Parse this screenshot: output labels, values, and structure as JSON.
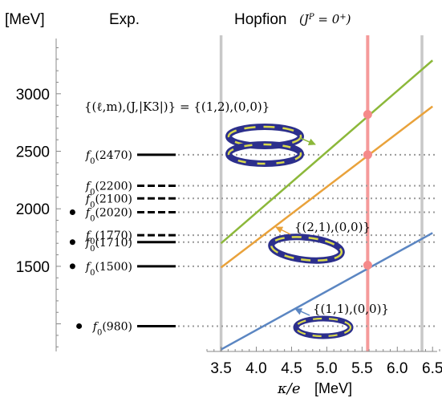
{
  "chart_data": {
    "type": "line",
    "y_unit_label": "[MeV]",
    "exp_title": "Exp.",
    "theory_title": "Hopfion",
    "theory_jp": "(J^P = 0^+)",
    "xlabel_var": "κ/e",
    "xlabel_unit": "[MeV]",
    "ylim": [
      760,
      3480
    ],
    "xlim": [
      3.3,
      6.6
    ],
    "yticks": [
      1500,
      2000,
      2500,
      3000
    ],
    "xticks": [
      3.5,
      4.0,
      4.5,
      5.0,
      5.5,
      6.0,
      6.5
    ],
    "xtick_labels": [
      "3.5",
      "4.0",
      "4.5",
      "5.0",
      "5.5",
      "6.0",
      "6.5"
    ],
    "experimental_states": [
      {
        "label": "f0(980)",
        "mass": 980,
        "established": true,
        "line": "solid"
      },
      {
        "label": "f0(1500)",
        "mass": 1500,
        "established": true,
        "line": "solid"
      },
      {
        "label": "f0(1710)",
        "mass": 1710,
        "established": true,
        "line": "solid"
      },
      {
        "label": "f0(1770)",
        "mass": 1770,
        "established": false,
        "line": "dashed"
      },
      {
        "label": "f0(2020)",
        "mass": 1970,
        "established": true,
        "line": "dashed"
      },
      {
        "label": "f0(2100)",
        "mass": 2090,
        "established": false,
        "line": "dashed"
      },
      {
        "label": "f0(2200)",
        "mass": 2200,
        "established": false,
        "line": "dashed"
      },
      {
        "label": "f0(2470)",
        "mass": 2470,
        "established": false,
        "line": "solid"
      }
    ],
    "series": [
      {
        "label": "{(1,1),(0,0)}",
        "color": "#5b86c2",
        "x": [
          3.5,
          6.5
        ],
        "y": [
          777,
          1790
        ]
      },
      {
        "label": "{(2,1),(0,0)}",
        "color": "#e9a23b",
        "x": [
          3.5,
          6.5
        ],
        "y": [
          1490,
          2890
        ]
      },
      {
        "label": "{(ℓ,m),(J,|K3|)} = {(1,2),(0,0)}",
        "color": "#8cb83a",
        "x": [
          3.5,
          6.5
        ],
        "y": [
          1700,
          3290
        ]
      }
    ],
    "vertical_lines": [
      {
        "x": 3.5,
        "color": "#c8c8c8"
      },
      {
        "x": 5.58,
        "color": "#f59a9a"
      },
      {
        "x": 6.35,
        "color": "#c8c8c8"
      }
    ],
    "highlight_points": [
      {
        "x": 5.58,
        "y": 1510
      },
      {
        "x": 5.58,
        "y": 2470
      },
      {
        "x": 5.58,
        "y": 2820
      }
    ],
    "colors": {
      "ring_outer": "#2c2f8c",
      "ring_inner": "#d9d94a",
      "highlight_point": "#f58a8a"
    }
  }
}
